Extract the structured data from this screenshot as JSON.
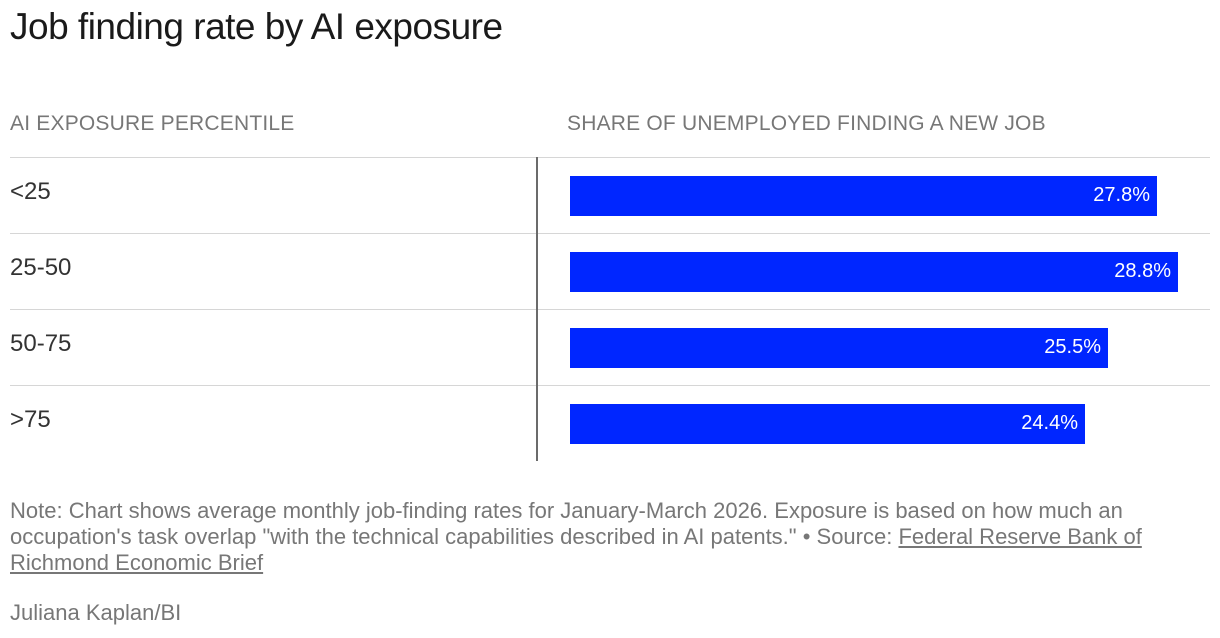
{
  "chart_data": {
    "type": "bar",
    "orientation": "horizontal",
    "title": "Job finding rate by AI exposure",
    "category_header": "AI EXPOSURE PERCENTILE",
    "value_header": "SHARE OF UNEMPLOYED FINDING A NEW JOB",
    "categories": [
      "<25",
      "25-50",
      "50-75",
      ">75"
    ],
    "values": [
      27.8,
      28.8,
      25.5,
      24.4
    ],
    "value_labels": [
      "27.8%",
      "28.8%",
      "25.5%",
      "24.4%"
    ],
    "xlim": [
      0,
      28.8
    ],
    "bar_color": "#0026ff"
  },
  "note": {
    "text": "Note: Chart shows average monthly job-finding rates for January-March 2026. Exposure is based on how much an occupation's task overlap \"with the technical capabilities described in AI patents.\" • Source: ",
    "link_text": "Federal Reserve Bank of Richmond Economic Brief"
  },
  "credit": "Juliana Kaplan/BI"
}
